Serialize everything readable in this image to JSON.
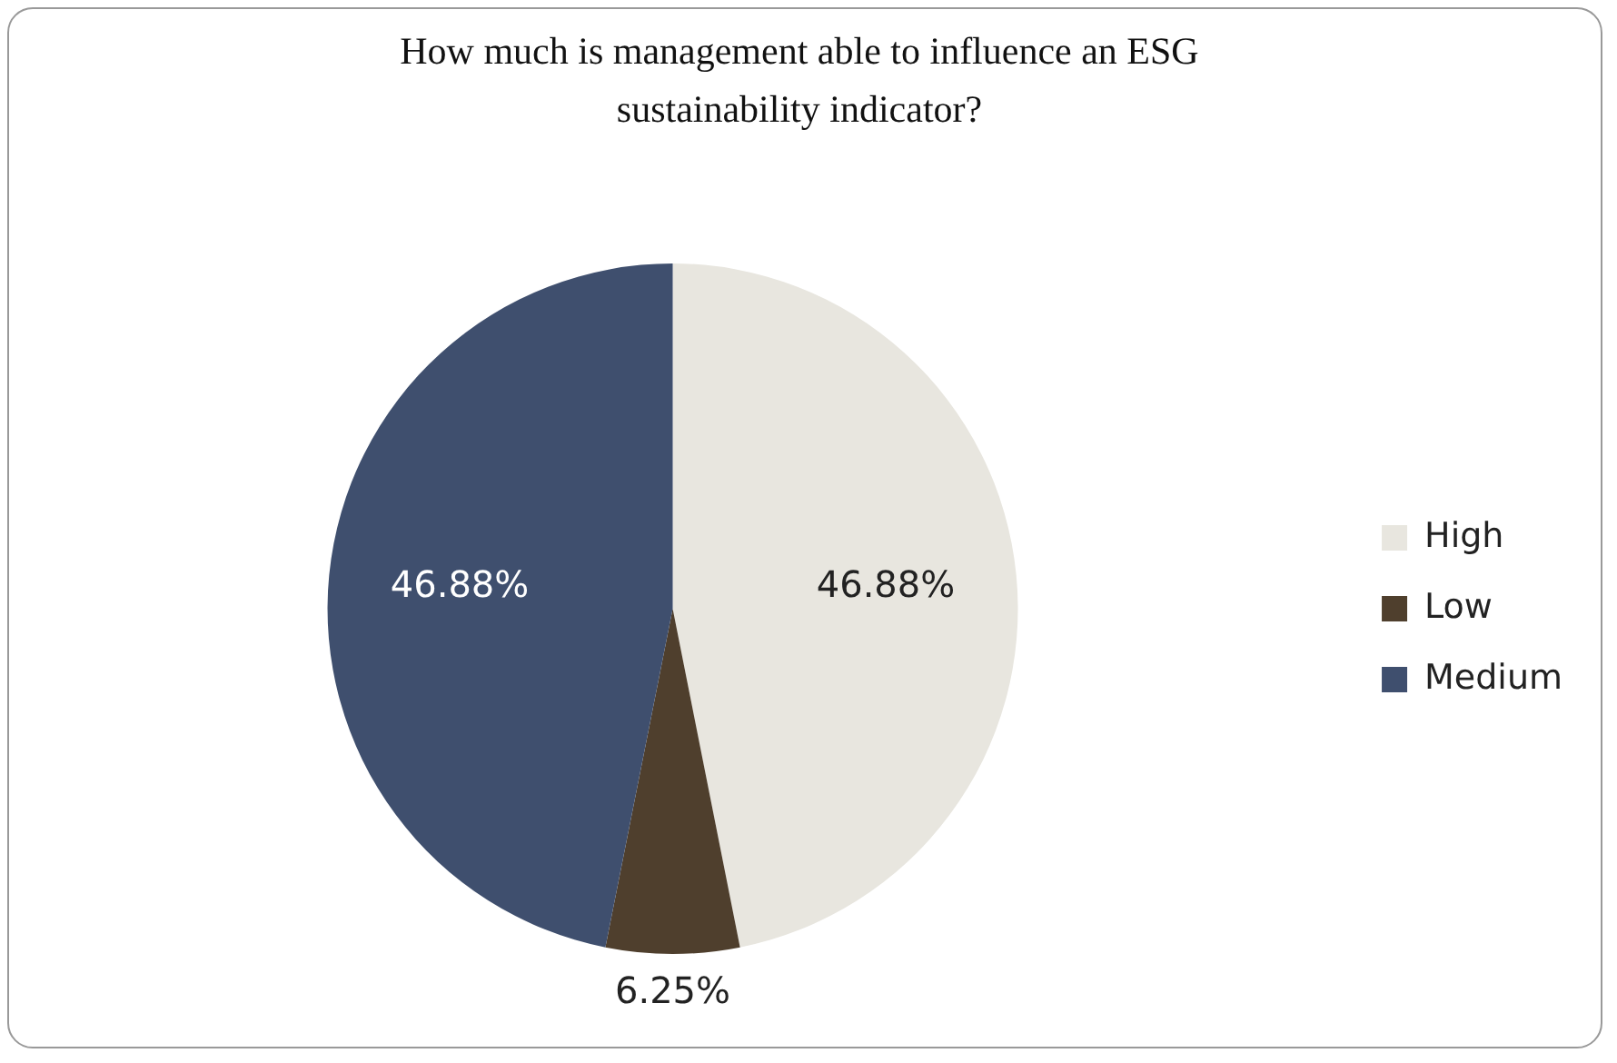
{
  "chart_data": {
    "type": "pie",
    "title": "How much is management able to influence an ESG sustainability indicator?",
    "categories": [
      "High",
      "Low",
      "Medium"
    ],
    "values": [
      46.88,
      6.25,
      46.88
    ],
    "value_labels": [
      "46.88%",
      "6.25%",
      "46.88%"
    ],
    "colors": [
      "#e8e6df",
      "#4f3f2d",
      "#3f4f6e"
    ],
    "legend": "right"
  }
}
